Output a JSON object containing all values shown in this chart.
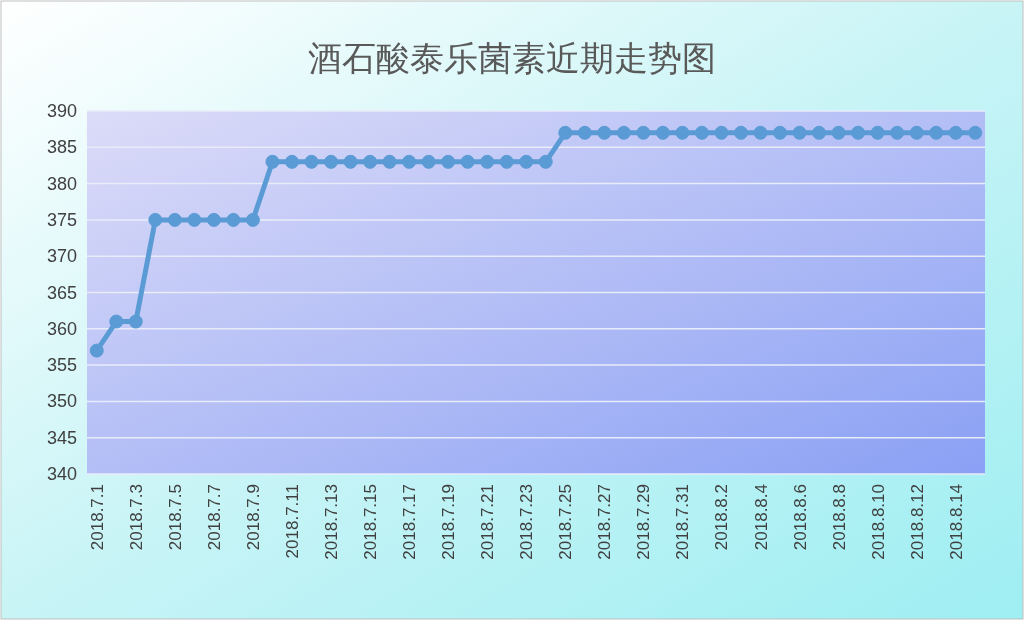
{
  "chart_data": {
    "type": "line",
    "title": "酒石酸泰乐菌素近期走势图",
    "categories": [
      "2018.7.1",
      null,
      "2018.7.3",
      null,
      "2018.7.5",
      null,
      "2018.7.7",
      null,
      "2018.7.9",
      null,
      "2018.7.11",
      null,
      "2018.7.13",
      null,
      "2018.7.15",
      null,
      "2018.7.17",
      null,
      "2018.7.19",
      null,
      "2018.7.21",
      null,
      "2018.7.23",
      null,
      "2018.7.25",
      null,
      "2018.7.27",
      null,
      "2018.7.29",
      null,
      "2018.7.31",
      null,
      "2018.8.2",
      null,
      "2018.8.4",
      null,
      "2018.8.6",
      null,
      "2018.8.8",
      null,
      "2018.8.10",
      null,
      "2018.8.12",
      null,
      "2018.8.14",
      null
    ],
    "series": [
      {
        "color": "#5b9bd5",
        "values": [
          357,
          361,
          361,
          375,
          375,
          375,
          375,
          375,
          375,
          383,
          383,
          383,
          383,
          383,
          383,
          383,
          383,
          383,
          383,
          383,
          383,
          383,
          383,
          383,
          387,
          387,
          387,
          387,
          387,
          387,
          387,
          387,
          387,
          387,
          387,
          387,
          387,
          387,
          387,
          387,
          387,
          387,
          387,
          387,
          387,
          387
        ]
      }
    ],
    "ylim": [
      340,
      390
    ],
    "yticks": [
      340,
      345,
      350,
      355,
      360,
      365,
      370,
      375,
      380,
      385,
      390
    ],
    "grid": "y",
    "marker": "circle",
    "line_style": "solid"
  }
}
